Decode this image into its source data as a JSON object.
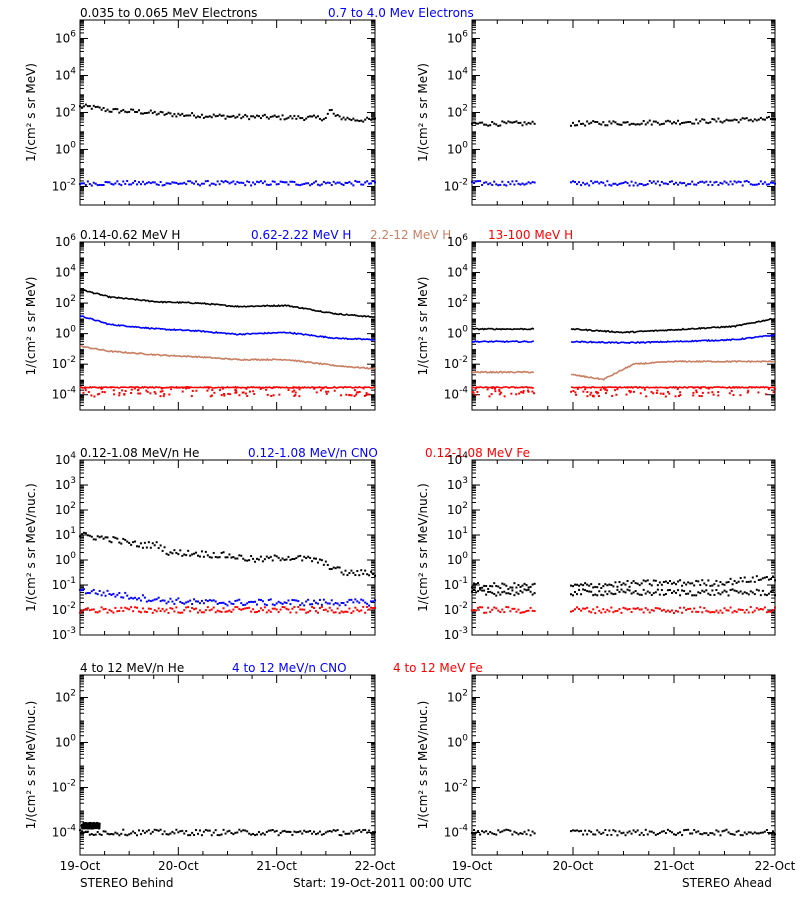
{
  "colors": {
    "black": "#000000",
    "blue": "#0000ff",
    "tan": "#c88064",
    "red": "#ff0000"
  },
  "footer": {
    "left": "STEREO Behind",
    "center": "Start: 19-Oct-2011 00:00 UTC",
    "right": "STEREO Ahead"
  },
  "chart_data": [
    {
      "type": "scatter",
      "panel": "electrons-behind",
      "legend": [
        {
          "text": "0.035 to 0.065 MeV Electrons",
          "color": "black"
        },
        {
          "text": "0.7 to 4.0 Mev Electrons",
          "color": "blue"
        }
      ],
      "ylabel": "1/(cm² s sr MeV)",
      "ylim": [
        0.001,
        10000000
      ],
      "yscale": "log",
      "yticks": [
        [
          -2,
          "10-2"
        ],
        [
          0,
          "100"
        ],
        [
          2,
          "102"
        ],
        [
          4,
          "104"
        ],
        [
          6,
          "106"
        ]
      ],
      "xlim": [
        0,
        3
      ],
      "xticks": [
        "19-Oct",
        "20-Oct",
        "21-Oct",
        "22-Oct"
      ],
      "series": [
        {
          "color": "black",
          "points": [
            [
              0,
              200
            ],
            [
              0.1,
              200
            ],
            [
              0.3,
              130
            ],
            [
              0.6,
              110
            ],
            [
              0.9,
              80
            ],
            [
              1.2,
              70
            ],
            [
              1.5,
              60
            ],
            [
              2.0,
              55
            ],
            [
              2.5,
              50
            ],
            [
              2.55,
              150
            ],
            [
              2.6,
              60
            ],
            [
              2.8,
              40
            ],
            [
              3.0,
              40
            ]
          ]
        },
        {
          "color": "blue",
          "points": [
            [
              0,
              0.015
            ],
            [
              1.5,
              0.015
            ],
            [
              3.0,
              0.015
            ]
          ]
        }
      ]
    },
    {
      "type": "scatter",
      "panel": "electrons-ahead",
      "legend": [],
      "ylabel": "1/(cm² s sr MeV)",
      "ylim": [
        0.001,
        10000000
      ],
      "yscale": "log",
      "yticks": [
        [
          -2,
          "10-2"
        ],
        [
          0,
          "100"
        ],
        [
          2,
          "102"
        ],
        [
          4,
          "104"
        ],
        [
          6,
          "106"
        ]
      ],
      "xlim": [
        0,
        3
      ],
      "xticks": [
        "19-Oct",
        "20-Oct",
        "21-Oct",
        "22-Oct"
      ],
      "gap": [
        0.62,
        0.98
      ],
      "series": [
        {
          "color": "black",
          "points": [
            [
              0,
              25
            ],
            [
              0.6,
              25
            ],
            [
              1.0,
              25
            ],
            [
              2.0,
              30
            ],
            [
              3.0,
              45
            ]
          ]
        },
        {
          "color": "blue",
          "points": [
            [
              0,
              0.015
            ],
            [
              3.0,
              0.015
            ]
          ]
        }
      ]
    },
    {
      "type": "line",
      "panel": "protons-behind",
      "legend": [
        {
          "text": "0.14-0.62 MeV H",
          "color": "black"
        },
        {
          "text": "0.62-2.22 MeV H",
          "color": "blue"
        },
        {
          "text": "2.2-12 MeV H",
          "color": "tan"
        },
        {
          "text": "13-100 MeV H",
          "color": "red"
        }
      ],
      "ylabel": "1/(cm² s sr MeV)",
      "ylim": [
        1e-05,
        1000000
      ],
      "yscale": "log",
      "yticks": [
        [
          -4,
          "10-4"
        ],
        [
          -2,
          "10-2"
        ],
        [
          0,
          "100"
        ],
        [
          2,
          "102"
        ],
        [
          4,
          "104"
        ],
        [
          6,
          "106"
        ]
      ],
      "xlim": [
        0,
        3
      ],
      "xticks": [
        "19-Oct",
        "20-Oct",
        "21-Oct",
        "22-Oct"
      ],
      "series": [
        {
          "color": "black",
          "points": [
            [
              0,
              800
            ],
            [
              0.3,
              250
            ],
            [
              0.8,
              120
            ],
            [
              1.2,
              100
            ],
            [
              1.6,
              60
            ],
            [
              2.1,
              70
            ],
            [
              2.6,
              20
            ],
            [
              3.0,
              12
            ]
          ]
        },
        {
          "color": "blue",
          "points": [
            [
              0,
              15
            ],
            [
              0.3,
              4
            ],
            [
              0.8,
              2
            ],
            [
              1.2,
              1.5
            ],
            [
              1.6,
              0.9
            ],
            [
              2.1,
              1.2
            ],
            [
              2.6,
              0.5
            ],
            [
              3.0,
              0.4
            ]
          ]
        },
        {
          "color": "tan",
          "points": [
            [
              0,
              0.15
            ],
            [
              0.3,
              0.07
            ],
            [
              0.8,
              0.04
            ],
            [
              1.2,
              0.03
            ],
            [
              1.6,
              0.02
            ],
            [
              2.1,
              0.02
            ],
            [
              2.6,
              0.008
            ],
            [
              3.0,
              0.005
            ]
          ]
        },
        {
          "color": "red",
          "points": [
            [
              0,
              0.0003
            ],
            [
              3.0,
              0.0003
            ]
          ]
        }
      ]
    },
    {
      "type": "line",
      "panel": "protons-ahead",
      "legend": [],
      "ylabel": "1/(cm² s sr MeV)",
      "ylim": [
        1e-05,
        1000000
      ],
      "yscale": "log",
      "yticks": [
        [
          -4,
          "10-4"
        ],
        [
          -2,
          "10-2"
        ],
        [
          0,
          "100"
        ],
        [
          2,
          "102"
        ],
        [
          4,
          "104"
        ],
        [
          6,
          "106"
        ]
      ],
      "xlim": [
        0,
        3
      ],
      "xticks": [
        "19-Oct",
        "20-Oct",
        "21-Oct",
        "22-Oct"
      ],
      "gap": [
        0.62,
        0.98
      ],
      "series": [
        {
          "color": "black",
          "points": [
            [
              0,
              2
            ],
            [
              0.6,
              2
            ],
            [
              1.0,
              2
            ],
            [
              1.5,
              1.2
            ],
            [
              2.0,
              1.8
            ],
            [
              2.6,
              3
            ],
            [
              3.0,
              10
            ]
          ]
        },
        {
          "color": "blue",
          "points": [
            [
              0,
              0.3
            ],
            [
              0.6,
              0.3
            ],
            [
              1.0,
              0.3
            ],
            [
              1.5,
              0.25
            ],
            [
              2.0,
              0.3
            ],
            [
              2.6,
              0.4
            ],
            [
              3.0,
              0.8
            ]
          ]
        },
        {
          "color": "tan",
          "points": [
            [
              0,
              0.003
            ],
            [
              0.6,
              0.003
            ],
            [
              1.0,
              0.002
            ],
            [
              1.3,
              0.001
            ],
            [
              1.6,
              0.01
            ],
            [
              2.0,
              0.015
            ],
            [
              3.0,
              0.015
            ]
          ]
        },
        {
          "color": "red",
          "points": [
            [
              0,
              0.0003
            ],
            [
              0.6,
              0.0003
            ],
            [
              1.0,
              0.0003
            ],
            [
              3.0,
              0.0003
            ]
          ]
        }
      ]
    },
    {
      "type": "scatter",
      "panel": "ions-lo-behind",
      "legend": [
        {
          "text": "0.12-1.08 MeV/n He",
          "color": "black"
        },
        {
          "text": "0.12-1.08 MeV/n CNO",
          "color": "blue"
        },
        {
          "text": "0.12-1.08 MeV Fe",
          "color": "red"
        }
      ],
      "ylabel": "1/(cm² s sr MeV/nuc.)",
      "ylim": [
        0.001,
        10000
      ],
      "yscale": "log",
      "yticks": [
        [
          -3,
          "10-3"
        ],
        [
          -2,
          "10-2"
        ],
        [
          -1,
          "10-1"
        ],
        [
          0,
          "100"
        ],
        [
          1,
          "101"
        ],
        [
          2,
          "102"
        ],
        [
          3,
          "103"
        ],
        [
          4,
          "104"
        ]
      ],
      "xlim": [
        0,
        3
      ],
      "xticks": [
        "19-Oct",
        "20-Oct",
        "21-Oct",
        "22-Oct"
      ],
      "series": [
        {
          "color": "black",
          "points": [
            [
              0,
              10
            ],
            [
              0.3,
              7
            ],
            [
              0.6,
              4
            ],
            [
              0.8,
              4
            ],
            [
              0.9,
              2
            ],
            [
              1.2,
              1.8
            ],
            [
              1.5,
              1.5
            ],
            [
              1.8,
              1
            ],
            [
              2.1,
              1.3
            ],
            [
              2.4,
              1
            ],
            [
              2.7,
              0.3
            ],
            [
              3.0,
              0.3
            ]
          ]
        },
        {
          "color": "blue",
          "points": [
            [
              0,
              0.06
            ],
            [
              0.4,
              0.04
            ],
            [
              0.8,
              0.025
            ],
            [
              1.2,
              0.02
            ],
            [
              3.0,
              0.02
            ]
          ]
        },
        {
          "color": "red",
          "points": [
            [
              0,
              0.01
            ],
            [
              3.0,
              0.01
            ]
          ]
        }
      ]
    },
    {
      "type": "scatter",
      "panel": "ions-lo-ahead",
      "legend": [],
      "ylabel": "1/(cm² s sr MeV/nuc.)",
      "ylim": [
        0.001,
        10000
      ],
      "yscale": "log",
      "yticks": [
        [
          -3,
          "10-3"
        ],
        [
          -2,
          "10-2"
        ],
        [
          -1,
          "10-1"
        ],
        [
          0,
          "100"
        ],
        [
          1,
          "101"
        ],
        [
          2,
          "102"
        ],
        [
          3,
          "103"
        ],
        [
          4,
          "104"
        ]
      ],
      "xlim": [
        0,
        3
      ],
      "xticks": [
        "19-Oct",
        "20-Oct",
        "21-Oct",
        "22-Oct"
      ],
      "gap": [
        0.62,
        0.98
      ],
      "series": [
        {
          "color": "black",
          "points": [
            [
              0,
              0.05
            ],
            [
              3.0,
              0.05
            ]
          ]
        },
        {
          "color": "black",
          "points": [
            [
              0,
              0.09
            ],
            [
              0.6,
              0.09
            ],
            [
              1.0,
              0.09
            ],
            [
              1.8,
              0.12
            ],
            [
              2.4,
              0.12
            ],
            [
              3.0,
              0.2
            ]
          ]
        },
        {
          "color": "red",
          "points": [
            [
              0,
              0.01
            ],
            [
              3.0,
              0.01
            ]
          ]
        }
      ]
    },
    {
      "type": "scatter",
      "panel": "ions-hi-behind",
      "legend": [
        {
          "text": "4 to 12 MeV/n He",
          "color": "black"
        },
        {
          "text": "4 to 12 MeV/n CNO",
          "color": "blue"
        },
        {
          "text": "4 to 12 MeV Fe",
          "color": "red"
        }
      ],
      "ylabel": "1/(cm² s sr MeV/nuc.)",
      "ylim": [
        1e-05,
        1000
      ],
      "yscale": "log",
      "yticks": [
        [
          -4,
          "10-4"
        ],
        [
          -2,
          "10-2"
        ],
        [
          0,
          "100"
        ],
        [
          2,
          "102"
        ]
      ],
      "xlim": [
        0,
        3
      ],
      "xticks": [
        "19-Oct",
        "20-Oct",
        "21-Oct",
        "22-Oct"
      ],
      "series": [
        {
          "color": "black",
          "points": [
            [
              0,
              0.0001
            ],
            [
              3.0,
              0.0001
            ]
          ]
        },
        {
          "color": "black",
          "points": [
            [
              0.02,
              0.0002
            ],
            [
              0.2,
              0.0002
            ]
          ]
        }
      ]
    },
    {
      "type": "scatter",
      "panel": "ions-hi-ahead",
      "legend": [],
      "ylabel": "1/(cm² s sr MeV/nuc.)",
      "ylim": [
        1e-05,
        1000
      ],
      "yscale": "log",
      "yticks": [
        [
          -4,
          "10-4"
        ],
        [
          -2,
          "10-2"
        ],
        [
          0,
          "100"
        ],
        [
          2,
          "102"
        ]
      ],
      "xlim": [
        0,
        3
      ],
      "xticks": [
        "19-Oct",
        "20-Oct",
        "21-Oct",
        "22-Oct"
      ],
      "gap": [
        0.62,
        0.98
      ],
      "series": [
        {
          "color": "black",
          "points": [
            [
              0,
              0.0001
            ],
            [
              3.0,
              0.0001
            ]
          ]
        }
      ]
    }
  ]
}
